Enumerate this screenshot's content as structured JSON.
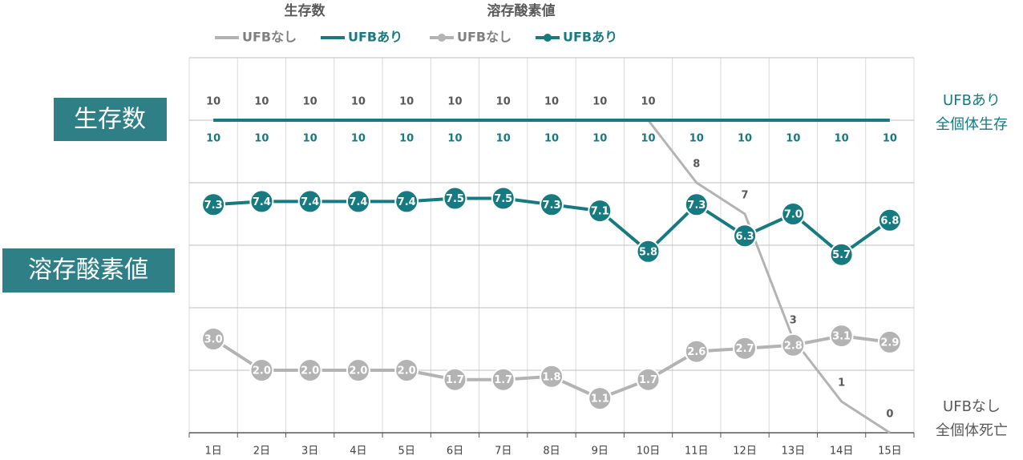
{
  "chart_data": [
    {
      "type": "line",
      "title": "生存数",
      "categories": [
        "1日",
        "2日",
        "3日",
        "4日",
        "5日",
        "6日",
        "7日",
        "8日",
        "9日",
        "10日",
        "11日",
        "12日",
        "13日",
        "14日",
        "15日"
      ],
      "series": [
        {
          "name": "UFBなし",
          "color": "#b3b3b3",
          "label_color": "#595959",
          "label_position": "above",
          "values": [
            10,
            10,
            10,
            10,
            10,
            10,
            10,
            10,
            10,
            10,
            8,
            7,
            3,
            1,
            0
          ]
        },
        {
          "name": "UFBあり",
          "color": "#167a80",
          "label_color": "#167a80",
          "label_position": "below",
          "values": [
            10,
            10,
            10,
            10,
            10,
            10,
            10,
            10,
            10,
            10,
            10,
            10,
            10,
            10,
            10
          ]
        }
      ],
      "ylim": [
        0,
        12
      ],
      "yticks": [
        0,
        2,
        4,
        6,
        8,
        10,
        12
      ],
      "grid": true,
      "annotations": [
        {
          "lines": [
            "UFBあり",
            "全個体生存"
          ],
          "color": "#167a80"
        },
        {
          "lines": [
            "UFBなし",
            "全個体死亡"
          ],
          "color": "#595959"
        }
      ]
    },
    {
      "type": "line",
      "title": "溶存酸素値",
      "markers": true,
      "ylim": [
        0,
        12
      ],
      "series": [
        {
          "name": "UFBなし",
          "color": "#b3b3b3",
          "values": [
            3.0,
            2.0,
            2.0,
            2.0,
            2.0,
            1.7,
            1.7,
            1.8,
            1.1,
            1.7,
            2.6,
            2.7,
            2.8,
            3.1,
            2.9
          ],
          "value_labels": [
            "3.0",
            "2.0",
            "2.0",
            "2.0",
            "2.0",
            "1.7",
            "1.7",
            "1.8",
            "1.1",
            "1.7",
            "2.6",
            "2.7",
            "2.8",
            "3.1",
            "2.9"
          ]
        },
        {
          "name": "UFBあり",
          "color": "#167a80",
          "values": [
            7.3,
            7.4,
            7.4,
            7.4,
            7.4,
            7.5,
            7.5,
            7.3,
            7.1,
            5.8,
            7.3,
            6.3,
            7.0,
            5.7,
            6.8
          ],
          "value_labels": [
            "7.3",
            "7.4",
            "7.4",
            "7.4",
            "7.4",
            "7.5",
            "7.5",
            "7.3",
            "7.1",
            "5.8",
            "7.3",
            "6.3",
            "7.0",
            "5.7",
            "6.8"
          ]
        }
      ]
    }
  ]
}
